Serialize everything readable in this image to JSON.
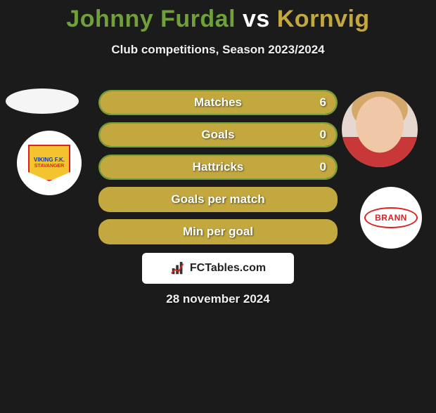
{
  "title_parts": {
    "p1": "Johnny Furdal",
    "vs": " vs ",
    "p2": "Kornvig"
  },
  "subtitle": "Club competitions, Season 2023/2024",
  "colors": {
    "p1": "#6fa03a",
    "p2": "#c2a83e",
    "bg": "#1a1b1a",
    "text": "#ffffff"
  },
  "player1": {
    "name": "Johnny Furdal",
    "club": "Viking FK",
    "club_badge_lines": [
      "VIKING F.K.",
      "STAVANGER"
    ]
  },
  "player2": {
    "name": "Kornvig",
    "club": "Brann",
    "club_badge_text": "BRANN"
  },
  "stats": [
    {
      "label": "Matches",
      "value": "6",
      "p1_share": 0.0,
      "p2_share": 1.0,
      "has_value": true
    },
    {
      "label": "Goals",
      "value": "0",
      "p1_share": 0.0,
      "p2_share": 1.0,
      "has_value": true
    },
    {
      "label": "Hattricks",
      "value": "0",
      "p1_share": 0.0,
      "p2_share": 1.0,
      "has_value": true
    },
    {
      "label": "Goals per match",
      "value": "",
      "p1_share": 0.0,
      "p2_share": 1.0,
      "has_value": false
    },
    {
      "label": "Min per goal",
      "value": "",
      "p1_share": 0.0,
      "p2_share": 1.0,
      "has_value": false
    }
  ],
  "site": "FCTables.com",
  "date": "28 november 2024"
}
